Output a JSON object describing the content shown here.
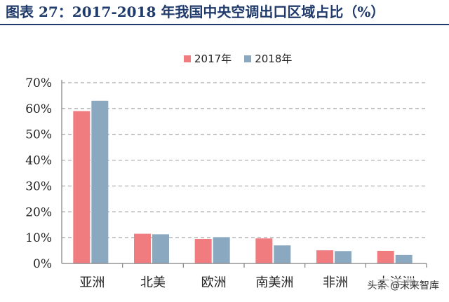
{
  "header": {
    "title": "图表 27：2017-2018 年我国中央空调出口区域占比（%）"
  },
  "colors": {
    "series_2017": "#f07c80",
    "series_2018": "#8aa9c1",
    "grid": "#a6a6a6",
    "title": "#1f3a6b"
  },
  "watermark": "头条 @未来智库",
  "chart_data": {
    "type": "bar",
    "title": "",
    "xlabel": "",
    "ylabel": "",
    "categories": [
      "亚洲",
      "北美",
      "欧洲",
      "南美洲",
      "非洲",
      "大洋洲"
    ],
    "series": [
      {
        "name": "2017年",
        "values": [
          59,
          11.5,
          9.5,
          9.7,
          5.1,
          4.9
        ]
      },
      {
        "name": "2018年",
        "values": [
          63,
          11.3,
          10.2,
          7,
          4.8,
          3.3
        ]
      }
    ],
    "yticks": [
      "0%",
      "10%",
      "20%",
      "30%",
      "40%",
      "50%",
      "60%",
      "70%"
    ],
    "ylim": [
      0,
      70
    ],
    "grid": true,
    "legend": "top"
  }
}
